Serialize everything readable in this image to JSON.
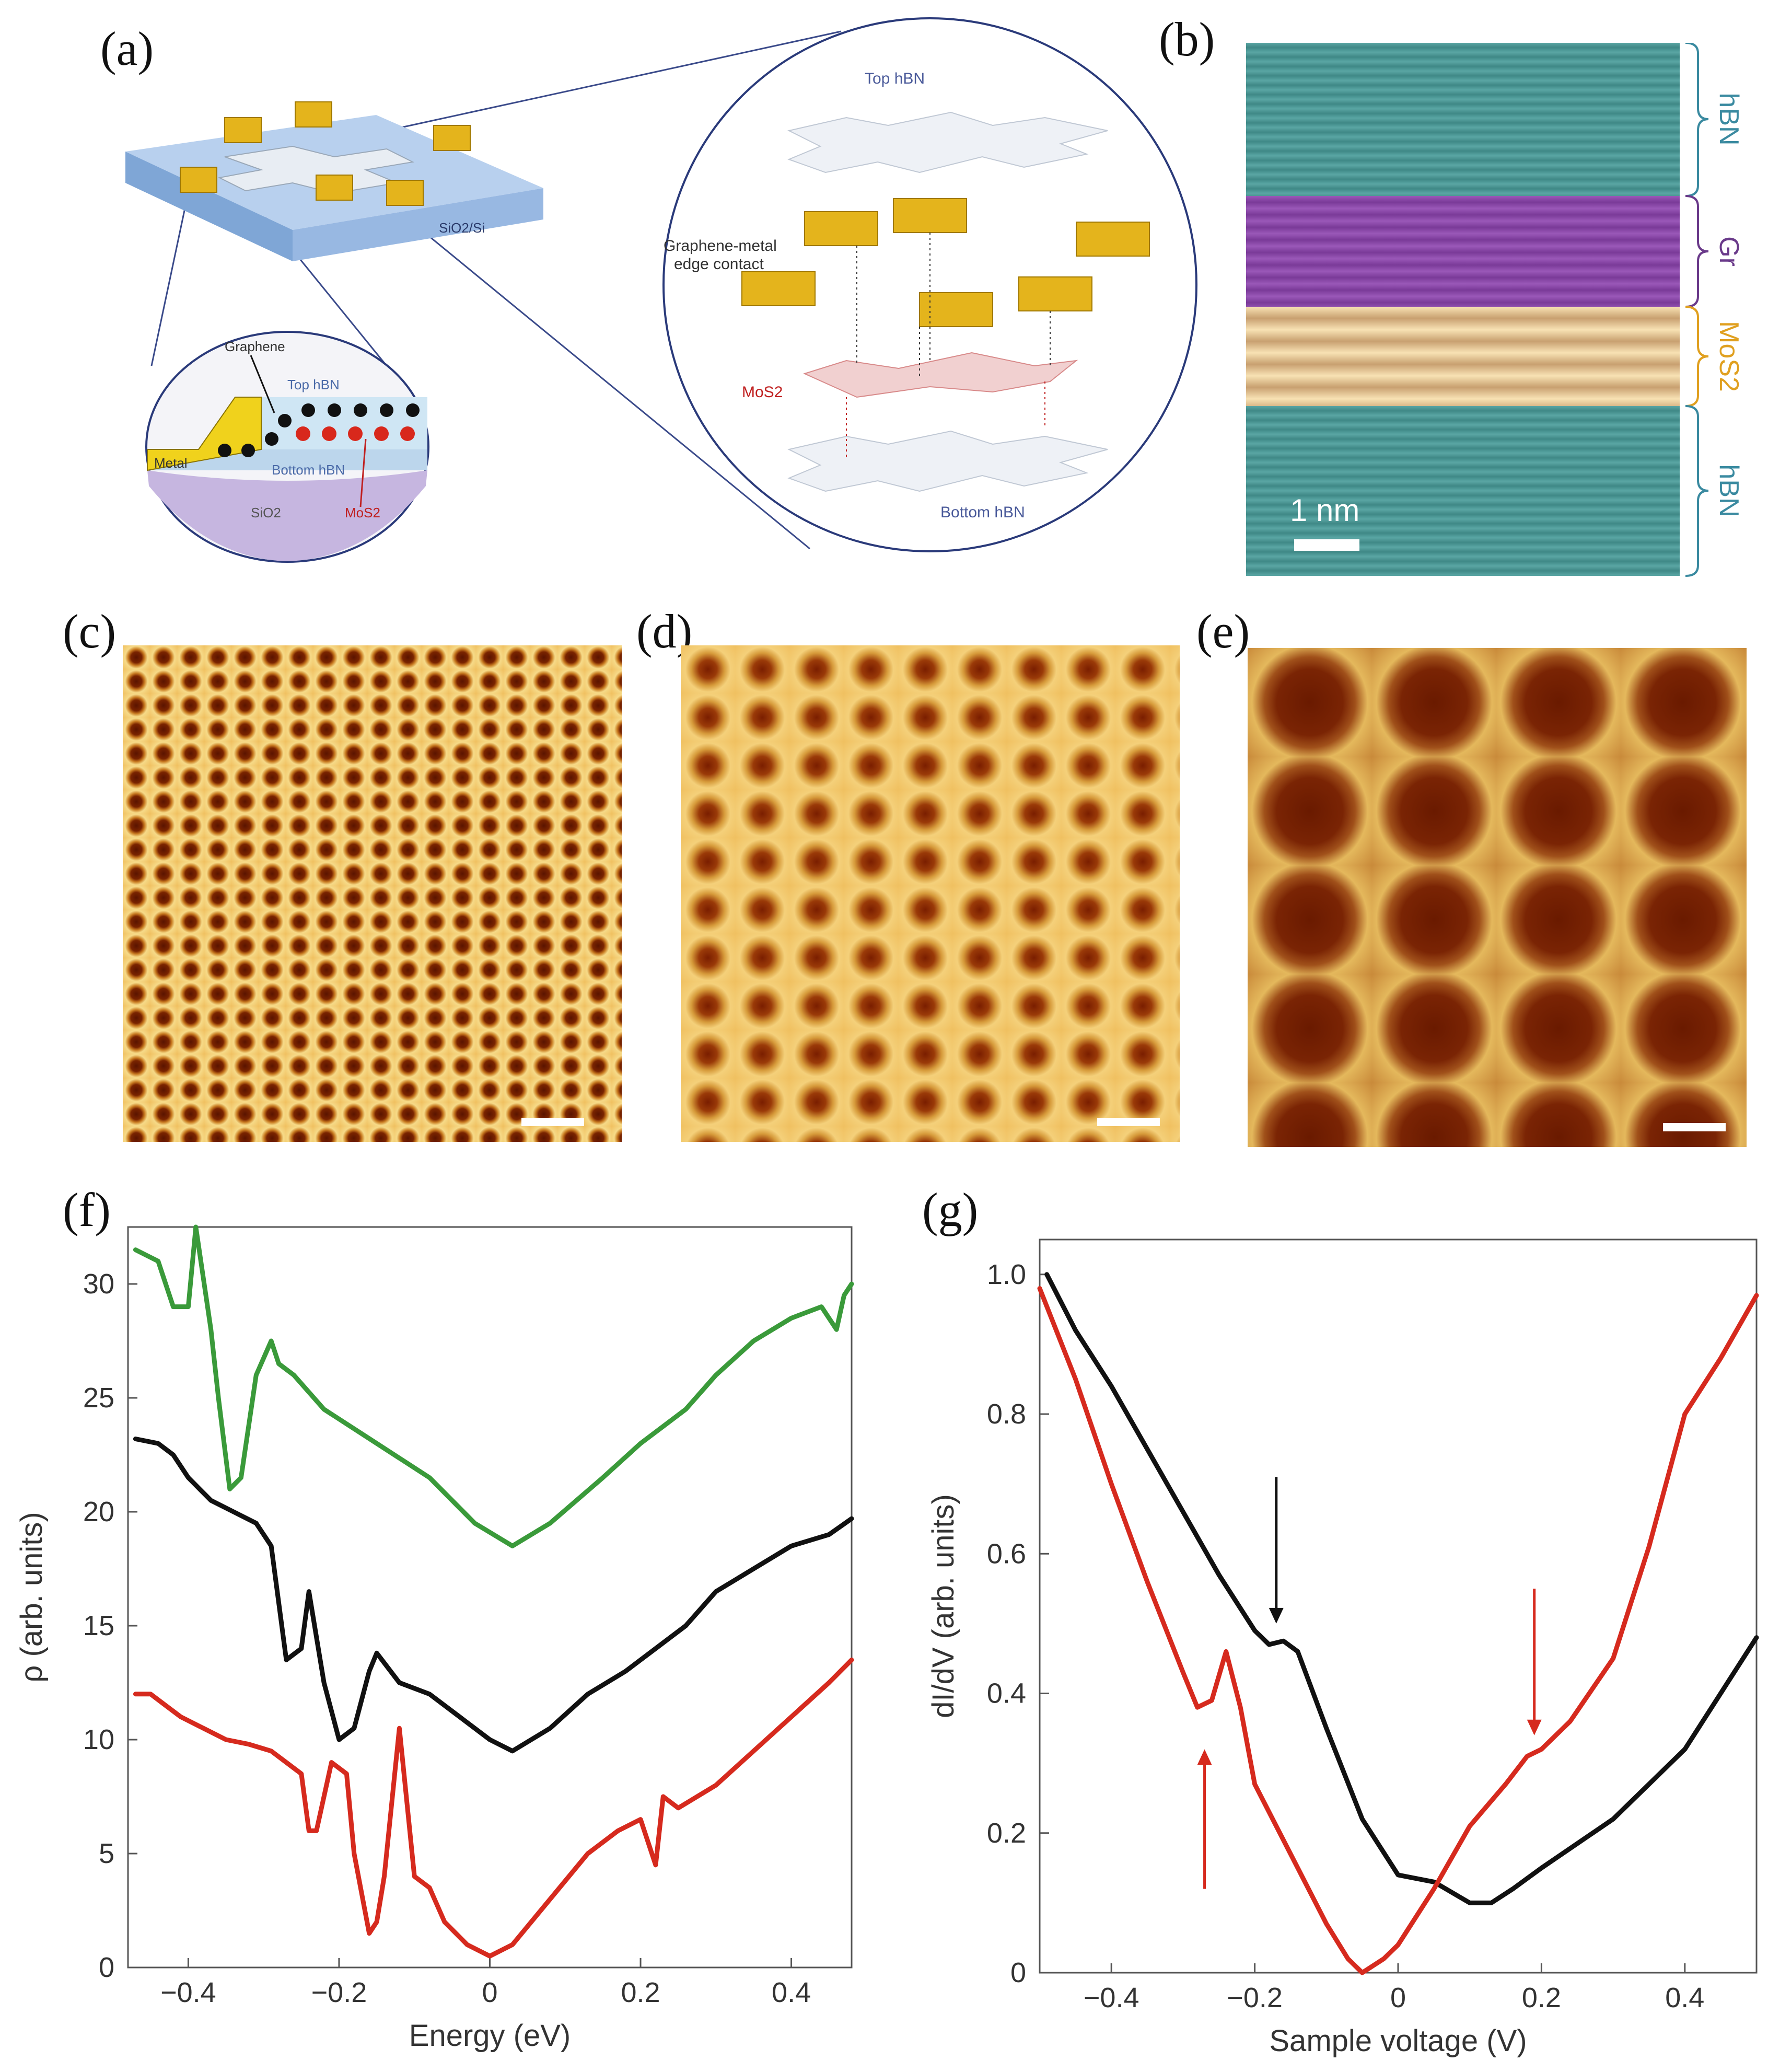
{
  "panel_labels": [
    "(a)",
    "(b)",
    "(c)",
    "(d)",
    "(e)",
    "(f)",
    "(g)"
  ],
  "panel_a": {
    "substrate_label": "SiO2/Si",
    "inset_labels": {
      "graphene": "Graphene",
      "top_hbn": "Top hBN",
      "metal": "Metal",
      "bottom_hbn": "Bottom hBN",
      "sio2": "SiO2",
      "mos2": "MoS2"
    },
    "exploded_labels": {
      "top_hbn": "Top hBN",
      "contact_line1": "Graphene-metal",
      "contact_line2": "edge contact",
      "mos2": "MoS2",
      "bottom_hbn": "Bottom hBN"
    },
    "colors": {
      "metal": "#e2b21a",
      "substrate": "#a9c4e6",
      "mos2": "#d32a2a",
      "graphene": "#111111"
    }
  },
  "panel_b": {
    "layers": [
      {
        "label": "hBN",
        "color": "#4a9a9a"
      },
      {
        "label": "Gr",
        "color": "#8a4aa6"
      },
      {
        "label": "MoS2",
        "color": "#e4c48c"
      },
      {
        "label": "hBN",
        "color": "#4a9a9a"
      }
    ],
    "scale_bar": "1 nm"
  },
  "panels_cde": {
    "colors": {
      "dark": "#6b1a00",
      "mid": "#b8731a",
      "light": "#f4d98a"
    }
  },
  "panel_f": {
    "chart_data": {
      "type": "line",
      "xlabel": "Energy (eV)",
      "ylabel": "ρ (arb. units)",
      "xlim": [
        -0.48,
        0.48
      ],
      "ylim": [
        0,
        32.5
      ],
      "xticks": [
        -0.4,
        -0.2,
        0,
        0.2,
        0.4
      ],
      "xtick_labels": [
        "−0.4",
        "−0.2",
        "0",
        "0.2",
        "0.4"
      ],
      "yticks": [
        0,
        5,
        10,
        15,
        20,
        25,
        30
      ],
      "ytick_labels": [
        "0",
        "5",
        "10",
        "15",
        "20",
        "25",
        "30"
      ],
      "series": [
        {
          "name": "green",
          "color": "#3a9a3a",
          "x": [
            -0.47,
            -0.44,
            -0.42,
            -0.4,
            -0.39,
            -0.37,
            -0.36,
            -0.345,
            -0.33,
            -0.31,
            -0.29,
            -0.28,
            -0.26,
            -0.22,
            -0.15,
            -0.08,
            -0.02,
            0.03,
            0.08,
            0.15,
            0.2,
            0.26,
            0.3,
            0.35,
            0.4,
            0.44,
            0.46,
            0.47,
            0.48
          ],
          "y": [
            31.5,
            31,
            29,
            29,
            32.5,
            28,
            25,
            21,
            21.5,
            26,
            27.5,
            26.5,
            26,
            24.5,
            23,
            21.5,
            19.5,
            18.5,
            19.5,
            21.5,
            23,
            24.5,
            26,
            27.5,
            28.5,
            29,
            28,
            29.5,
            30
          ]
        },
        {
          "name": "black",
          "color": "#111111",
          "x": [
            -0.47,
            -0.44,
            -0.42,
            -0.4,
            -0.37,
            -0.34,
            -0.31,
            -0.29,
            -0.27,
            -0.25,
            -0.24,
            -0.22,
            -0.2,
            -0.18,
            -0.16,
            -0.15,
            -0.12,
            -0.08,
            -0.04,
            0,
            0.03,
            0.08,
            0.13,
            0.18,
            0.22,
            0.26,
            0.3,
            0.35,
            0.4,
            0.45,
            0.48
          ],
          "y": [
            23.2,
            23,
            22.5,
            21.5,
            20.5,
            20,
            19.5,
            18.5,
            13.5,
            14,
            16.5,
            12.5,
            10,
            10.5,
            13,
            13.8,
            12.5,
            12,
            11,
            10,
            9.5,
            10.5,
            12,
            13,
            14,
            15,
            16.5,
            17.5,
            18.5,
            19,
            19.7
          ]
        },
        {
          "name": "red",
          "color": "#d62a1e",
          "x": [
            -0.47,
            -0.45,
            -0.43,
            -0.41,
            -0.38,
            -0.35,
            -0.32,
            -0.29,
            -0.27,
            -0.25,
            -0.24,
            -0.23,
            -0.21,
            -0.19,
            -0.18,
            -0.16,
            -0.15,
            -0.14,
            -0.12,
            -0.1,
            -0.08,
            -0.06,
            -0.03,
            0,
            0.03,
            0.08,
            0.13,
            0.17,
            0.2,
            0.22,
            0.23,
            0.25,
            0.3,
            0.35,
            0.4,
            0.45,
            0.48
          ],
          "y": [
            12,
            12,
            11.5,
            11,
            10.5,
            10,
            9.8,
            9.5,
            9,
            8.5,
            6,
            6,
            9,
            8.5,
            5,
            1.5,
            2,
            4,
            10.5,
            4,
            3.5,
            2,
            1,
            0.5,
            1,
            3,
            5,
            6,
            6.5,
            4.5,
            7.5,
            7,
            8,
            9.5,
            11,
            12.5,
            13.5
          ]
        }
      ]
    }
  },
  "panel_g": {
    "chart_data": {
      "type": "line",
      "xlabel": "Sample voltage (V)",
      "ylabel": "dI/dV (arb. units)",
      "xlim": [
        -0.5,
        0.5
      ],
      "ylim": [
        0,
        1.05
      ],
      "xticks": [
        -0.4,
        -0.2,
        0,
        0.2,
        0.4
      ],
      "xtick_labels": [
        "−0.4",
        "−0.2",
        "0",
        "0.2",
        "0.4"
      ],
      "yticks": [
        0,
        0.2,
        0.4,
        0.6,
        0.8,
        1.0
      ],
      "ytick_labels": [
        "0",
        "0.2",
        "0.4",
        "0.6",
        "0.8",
        "1.0"
      ],
      "series": [
        {
          "name": "black",
          "color": "#111111",
          "x": [
            -0.49,
            -0.45,
            -0.4,
            -0.35,
            -0.3,
            -0.25,
            -0.2,
            -0.18,
            -0.16,
            -0.14,
            -0.1,
            -0.05,
            0,
            0.05,
            0.1,
            0.13,
            0.16,
            0.2,
            0.3,
            0.4,
            0.5
          ],
          "y": [
            1.0,
            0.92,
            0.84,
            0.75,
            0.66,
            0.57,
            0.49,
            0.47,
            0.475,
            0.46,
            0.35,
            0.22,
            0.14,
            0.13,
            0.1,
            0.1,
            0.12,
            0.15,
            0.22,
            0.32,
            0.48
          ]
        },
        {
          "name": "red",
          "color": "#d62a1e",
          "x": [
            -0.5,
            -0.45,
            -0.4,
            -0.35,
            -0.3,
            -0.28,
            -0.26,
            -0.24,
            -0.22,
            -0.2,
            -0.15,
            -0.1,
            -0.07,
            -0.05,
            -0.02,
            0,
            0.05,
            0.1,
            0.15,
            0.18,
            0.2,
            0.24,
            0.3,
            0.35,
            0.4,
            0.45,
            0.5
          ],
          "y": [
            0.98,
            0.85,
            0.7,
            0.56,
            0.43,
            0.38,
            0.39,
            0.46,
            0.38,
            0.27,
            0.17,
            0.07,
            0.02,
            0.0,
            0.02,
            0.04,
            0.12,
            0.21,
            0.27,
            0.31,
            0.32,
            0.36,
            0.45,
            0.61,
            0.8,
            0.88,
            0.97
          ]
        }
      ],
      "annotations": [
        {
          "type": "arrow",
          "color": "#111111",
          "x": -0.17,
          "y_from": 0.71,
          "y_to": 0.5,
          "direction": "down"
        },
        {
          "type": "arrow",
          "color": "#d62a1e",
          "x": 0.19,
          "y_from": 0.55,
          "y_to": 0.34,
          "direction": "down"
        },
        {
          "type": "arrow",
          "color": "#d62a1e",
          "x": -0.27,
          "y_from": 0.12,
          "y_to": 0.32,
          "direction": "up"
        }
      ]
    }
  }
}
